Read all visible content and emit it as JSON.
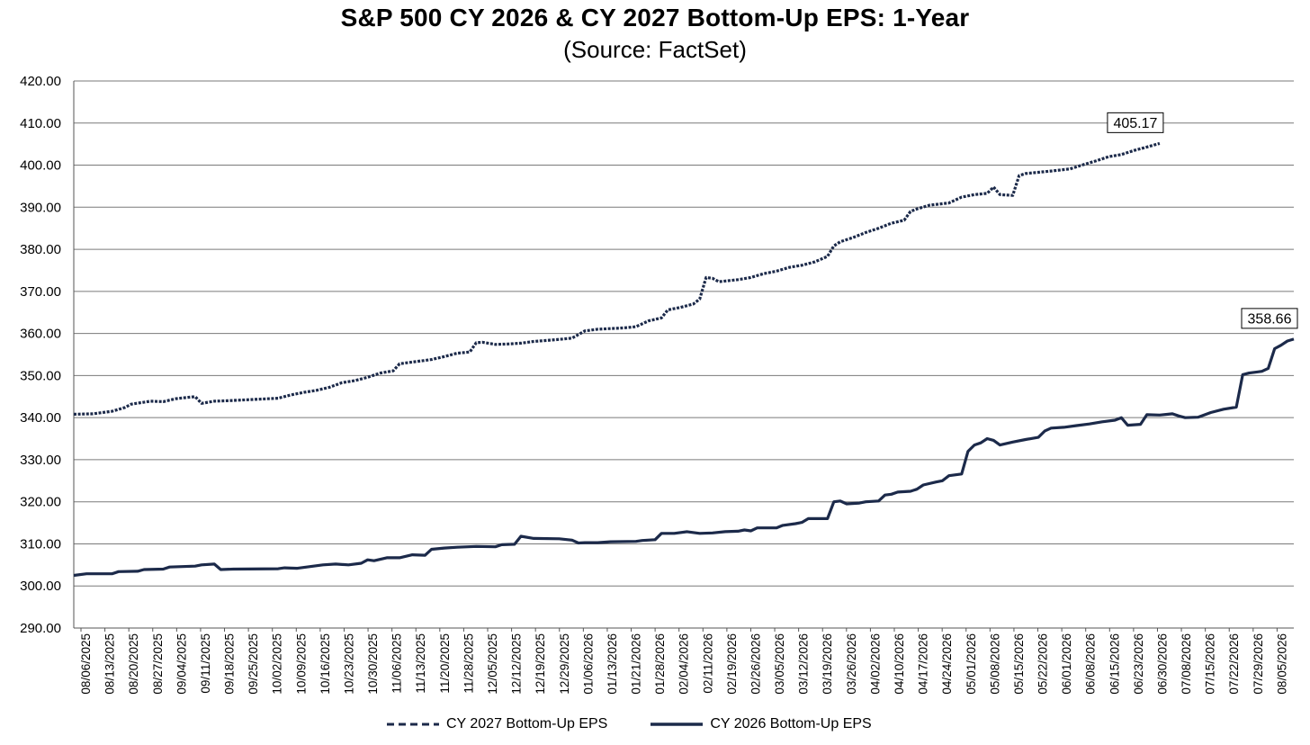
{
  "chart_data": {
    "type": "line",
    "title": "S&P 500 CY 2026 & CY 2027 Bottom-Up  EPS: 1-Year",
    "subtitle": "(Source:  FactSet)",
    "xlabel": "",
    "ylabel": "",
    "ylim": [
      290,
      420
    ],
    "yticks": [
      "290.00",
      "300.00",
      "310.00",
      "320.00",
      "330.00",
      "340.00",
      "350.00",
      "360.00",
      "370.00",
      "380.00",
      "390.00",
      "400.00",
      "410.00",
      "420.00"
    ],
    "grid": "horizontal",
    "legend_position": "bottom",
    "categories": [
      "08/06/2025",
      "08/13/2025",
      "08/20/2025",
      "08/27/2025",
      "09/04/2025",
      "09/11/2025",
      "09/18/2025",
      "09/25/2025",
      "10/02/2025",
      "10/09/2025",
      "10/16/2025",
      "10/23/2025",
      "10/30/2025",
      "11/06/2025",
      "11/13/2025",
      "11/20/2025",
      "11/28/2025",
      "12/05/2025",
      "12/12/2025",
      "12/19/2025",
      "12/29/2025",
      "01/06/2026",
      "01/13/2026",
      "01/21/2026",
      "01/28/2026",
      "02/04/2026",
      "02/11/2026",
      "02/19/2026",
      "02/26/2026",
      "03/05/2026",
      "03/12/2026",
      "03/19/2026",
      "03/26/2026",
      "04/02/2026",
      "04/10/2026",
      "04/17/2026",
      "04/24/2026",
      "05/01/2026",
      "05/08/2026",
      "05/15/2026",
      "05/22/2026",
      "06/01/2026",
      "06/08/2026",
      "06/15/2026",
      "06/23/2026",
      "06/30/2026",
      "07/08/2026",
      "07/15/2026",
      "07/22/2026",
      "07/29/2026",
      "08/05/2026"
    ],
    "series": [
      {
        "name": "CY 2027 Bottom-Up EPS",
        "style": "dashed",
        "color": "#1c2a4a",
        "points": [
          [
            0,
            340.8
          ],
          [
            3,
            340.9
          ],
          [
            6,
            341.5
          ],
          [
            8,
            342.4
          ],
          [
            9,
            343.2
          ],
          [
            12,
            343.9
          ],
          [
            14,
            343.8
          ],
          [
            16,
            344.5
          ],
          [
            19,
            345.0
          ],
          [
            20,
            343.4
          ],
          [
            22,
            343.9
          ],
          [
            24,
            344.0
          ],
          [
            28,
            344.3
          ],
          [
            32,
            344.6
          ],
          [
            34,
            345.4
          ],
          [
            36,
            346.0
          ],
          [
            38,
            346.5
          ],
          [
            40,
            347.2
          ],
          [
            42,
            348.3
          ],
          [
            44,
            348.8
          ],
          [
            46,
            349.6
          ],
          [
            48,
            350.6
          ],
          [
            50,
            351.1
          ],
          [
            51,
            352.8
          ],
          [
            53,
            353.2
          ],
          [
            56,
            353.8
          ],
          [
            58,
            354.5
          ],
          [
            60,
            355.3
          ],
          [
            62,
            355.6
          ],
          [
            63,
            357.8
          ],
          [
            64,
            357.9
          ],
          [
            66,
            357.4
          ],
          [
            68,
            357.5
          ],
          [
            70,
            357.7
          ],
          [
            72,
            358.1
          ],
          [
            76,
            358.6
          ],
          [
            78,
            358.9
          ],
          [
            80,
            360.6
          ],
          [
            82,
            361.0
          ],
          [
            86,
            361.3
          ],
          [
            88,
            361.6
          ],
          [
            90,
            363.0
          ],
          [
            92,
            363.7
          ],
          [
            93,
            365.6
          ],
          [
            95,
            366.2
          ],
          [
            97,
            367.0
          ],
          [
            98,
            368.2
          ],
          [
            99,
            373.3
          ],
          [
            100,
            373.1
          ],
          [
            101,
            372.3
          ],
          [
            104,
            372.8
          ],
          [
            106,
            373.3
          ],
          [
            108,
            374.2
          ],
          [
            110,
            374.8
          ],
          [
            112,
            375.7
          ],
          [
            114,
            376.2
          ],
          [
            116,
            377.0
          ],
          [
            118,
            378.3
          ],
          [
            119,
            380.8
          ],
          [
            120,
            381.8
          ],
          [
            122,
            382.8
          ],
          [
            124,
            384.0
          ],
          [
            126,
            385.0
          ],
          [
            128,
            386.2
          ],
          [
            130,
            386.9
          ],
          [
            131,
            389.0
          ],
          [
            132,
            389.6
          ],
          [
            134,
            390.5
          ],
          [
            137,
            391.0
          ],
          [
            139,
            392.4
          ],
          [
            141,
            393.0
          ],
          [
            143,
            393.3
          ],
          [
            144,
            394.8
          ],
          [
            145,
            393.0
          ],
          [
            147,
            392.8
          ],
          [
            148,
            397.5
          ],
          [
            149,
            398.0
          ],
          [
            151,
            398.3
          ],
          [
            153,
            398.6
          ],
          [
            156,
            399.1
          ],
          [
            158,
            400.1
          ],
          [
            160,
            401.0
          ],
          [
            162,
            402.0
          ],
          [
            164,
            402.5
          ],
          [
            166,
            403.5
          ],
          [
            168,
            404.3
          ],
          [
            170,
            405.17
          ]
        ],
        "end_label": "405.17"
      },
      {
        "name": "CY 2026 Bottom-Up EPS",
        "style": "solid",
        "color": "#1c2a4a",
        "points": [
          [
            0,
            302.5
          ],
          [
            2,
            302.9
          ],
          [
            6,
            302.9
          ],
          [
            7,
            303.4
          ],
          [
            10,
            303.5
          ],
          [
            11,
            303.9
          ],
          [
            14,
            304.0
          ],
          [
            15,
            304.5
          ],
          [
            19,
            304.7
          ],
          [
            20,
            305.0
          ],
          [
            22,
            305.2
          ],
          [
            23,
            303.9
          ],
          [
            25,
            304.0
          ],
          [
            32,
            304.1
          ],
          [
            33,
            304.3
          ],
          [
            35,
            304.2
          ],
          [
            37,
            304.6
          ],
          [
            39,
            305.0
          ],
          [
            41,
            305.2
          ],
          [
            43,
            305.0
          ],
          [
            45,
            305.4
          ],
          [
            46,
            306.2
          ],
          [
            47,
            306.0
          ],
          [
            49,
            306.7
          ],
          [
            51,
            306.7
          ],
          [
            53,
            307.4
          ],
          [
            55,
            307.3
          ],
          [
            56,
            308.7
          ],
          [
            58,
            309.0
          ],
          [
            60,
            309.2
          ],
          [
            63,
            309.4
          ],
          [
            66,
            309.3
          ],
          [
            67,
            309.8
          ],
          [
            69,
            309.9
          ],
          [
            70,
            311.8
          ],
          [
            72,
            311.3
          ],
          [
            76,
            311.2
          ],
          [
            78,
            310.9
          ],
          [
            79,
            310.2
          ],
          [
            80,
            310.3
          ],
          [
            82,
            310.3
          ],
          [
            84,
            310.5
          ],
          [
            88,
            310.6
          ],
          [
            89,
            310.8
          ],
          [
            91,
            311.0
          ],
          [
            92,
            312.5
          ],
          [
            94,
            312.5
          ],
          [
            96,
            312.9
          ],
          [
            98,
            312.5
          ],
          [
            100,
            312.6
          ],
          [
            102,
            312.9
          ],
          [
            104,
            313.0
          ],
          [
            105,
            313.3
          ],
          [
            106,
            313.1
          ],
          [
            107,
            313.8
          ],
          [
            110,
            313.8
          ],
          [
            111,
            314.4
          ],
          [
            113,
            314.8
          ],
          [
            114,
            315.1
          ],
          [
            115,
            316.0
          ],
          [
            118,
            316.0
          ],
          [
            119,
            320.0
          ],
          [
            120,
            320.2
          ],
          [
            121,
            319.5
          ],
          [
            123,
            319.7
          ],
          [
            124,
            320.0
          ],
          [
            126,
            320.2
          ],
          [
            127,
            321.6
          ],
          [
            128,
            321.8
          ],
          [
            129,
            322.3
          ],
          [
            131,
            322.5
          ],
          [
            132,
            323.0
          ],
          [
            133,
            324.0
          ],
          [
            135,
            324.7
          ],
          [
            136,
            325.0
          ],
          [
            137,
            326.2
          ],
          [
            139,
            326.6
          ],
          [
            140,
            332.0
          ],
          [
            141,
            333.5
          ],
          [
            142,
            334.0
          ],
          [
            143,
            335.0
          ],
          [
            144,
            334.6
          ],
          [
            145,
            333.5
          ],
          [
            147,
            334.2
          ],
          [
            149,
            334.8
          ],
          [
            151,
            335.3
          ],
          [
            152,
            336.8
          ],
          [
            153,
            337.5
          ],
          [
            155,
            337.7
          ],
          [
            157,
            338.1
          ],
          [
            159,
            338.5
          ],
          [
            161,
            339.0
          ],
          [
            163,
            339.4
          ],
          [
            164,
            340.0
          ],
          [
            165,
            338.2
          ],
          [
            167,
            338.4
          ],
          [
            168,
            340.7
          ],
          [
            170,
            340.6
          ],
          [
            172,
            340.9
          ],
          [
            173,
            340.4
          ],
          [
            174,
            340.0
          ],
          [
            176,
            340.1
          ],
          [
            178,
            341.2
          ],
          [
            180,
            342.0
          ],
          [
            182,
            342.5
          ],
          [
            183,
            350.2
          ],
          [
            184,
            350.6
          ],
          [
            186,
            351.0
          ],
          [
            187,
            351.7
          ],
          [
            188,
            356.4
          ],
          [
            189,
            357.2
          ],
          [
            190,
            358.2
          ],
          [
            191,
            358.66
          ]
        ],
        "end_label": "358.66"
      }
    ]
  }
}
